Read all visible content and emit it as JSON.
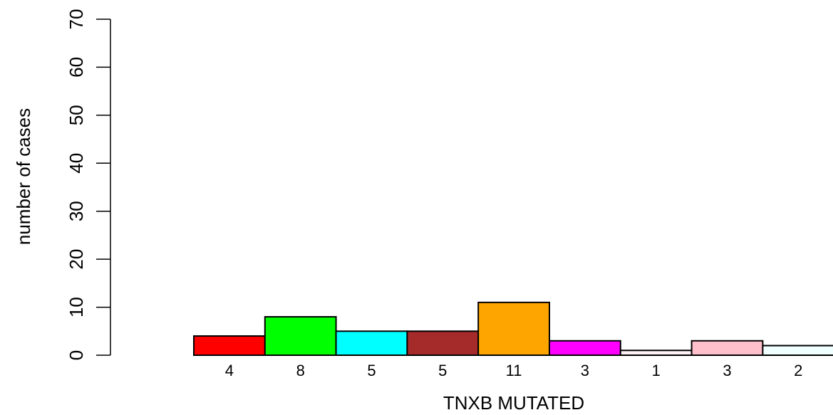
{
  "chart_data": {
    "type": "bar",
    "xlabel": "TNXB MUTATED",
    "ylabel": "number of cases",
    "ylim": [
      0,
      70
    ],
    "yticks": [
      0,
      10,
      20,
      30,
      40,
      50,
      60,
      70
    ],
    "grid": false,
    "legend": "none",
    "values": [
      4,
      8,
      5,
      5,
      11,
      3,
      1,
      3,
      2
    ],
    "bar_labels": [
      "4",
      "8",
      "5",
      "5",
      "11",
      "3",
      "1",
      "3",
      "2"
    ],
    "colors": [
      "#ff0000",
      "#00ff00",
      "#00ffff",
      "#a52a2a",
      "#ffa500",
      "#ff00ff",
      "#fff0f5",
      "#ffc0cb",
      "#f0ffff"
    ]
  }
}
